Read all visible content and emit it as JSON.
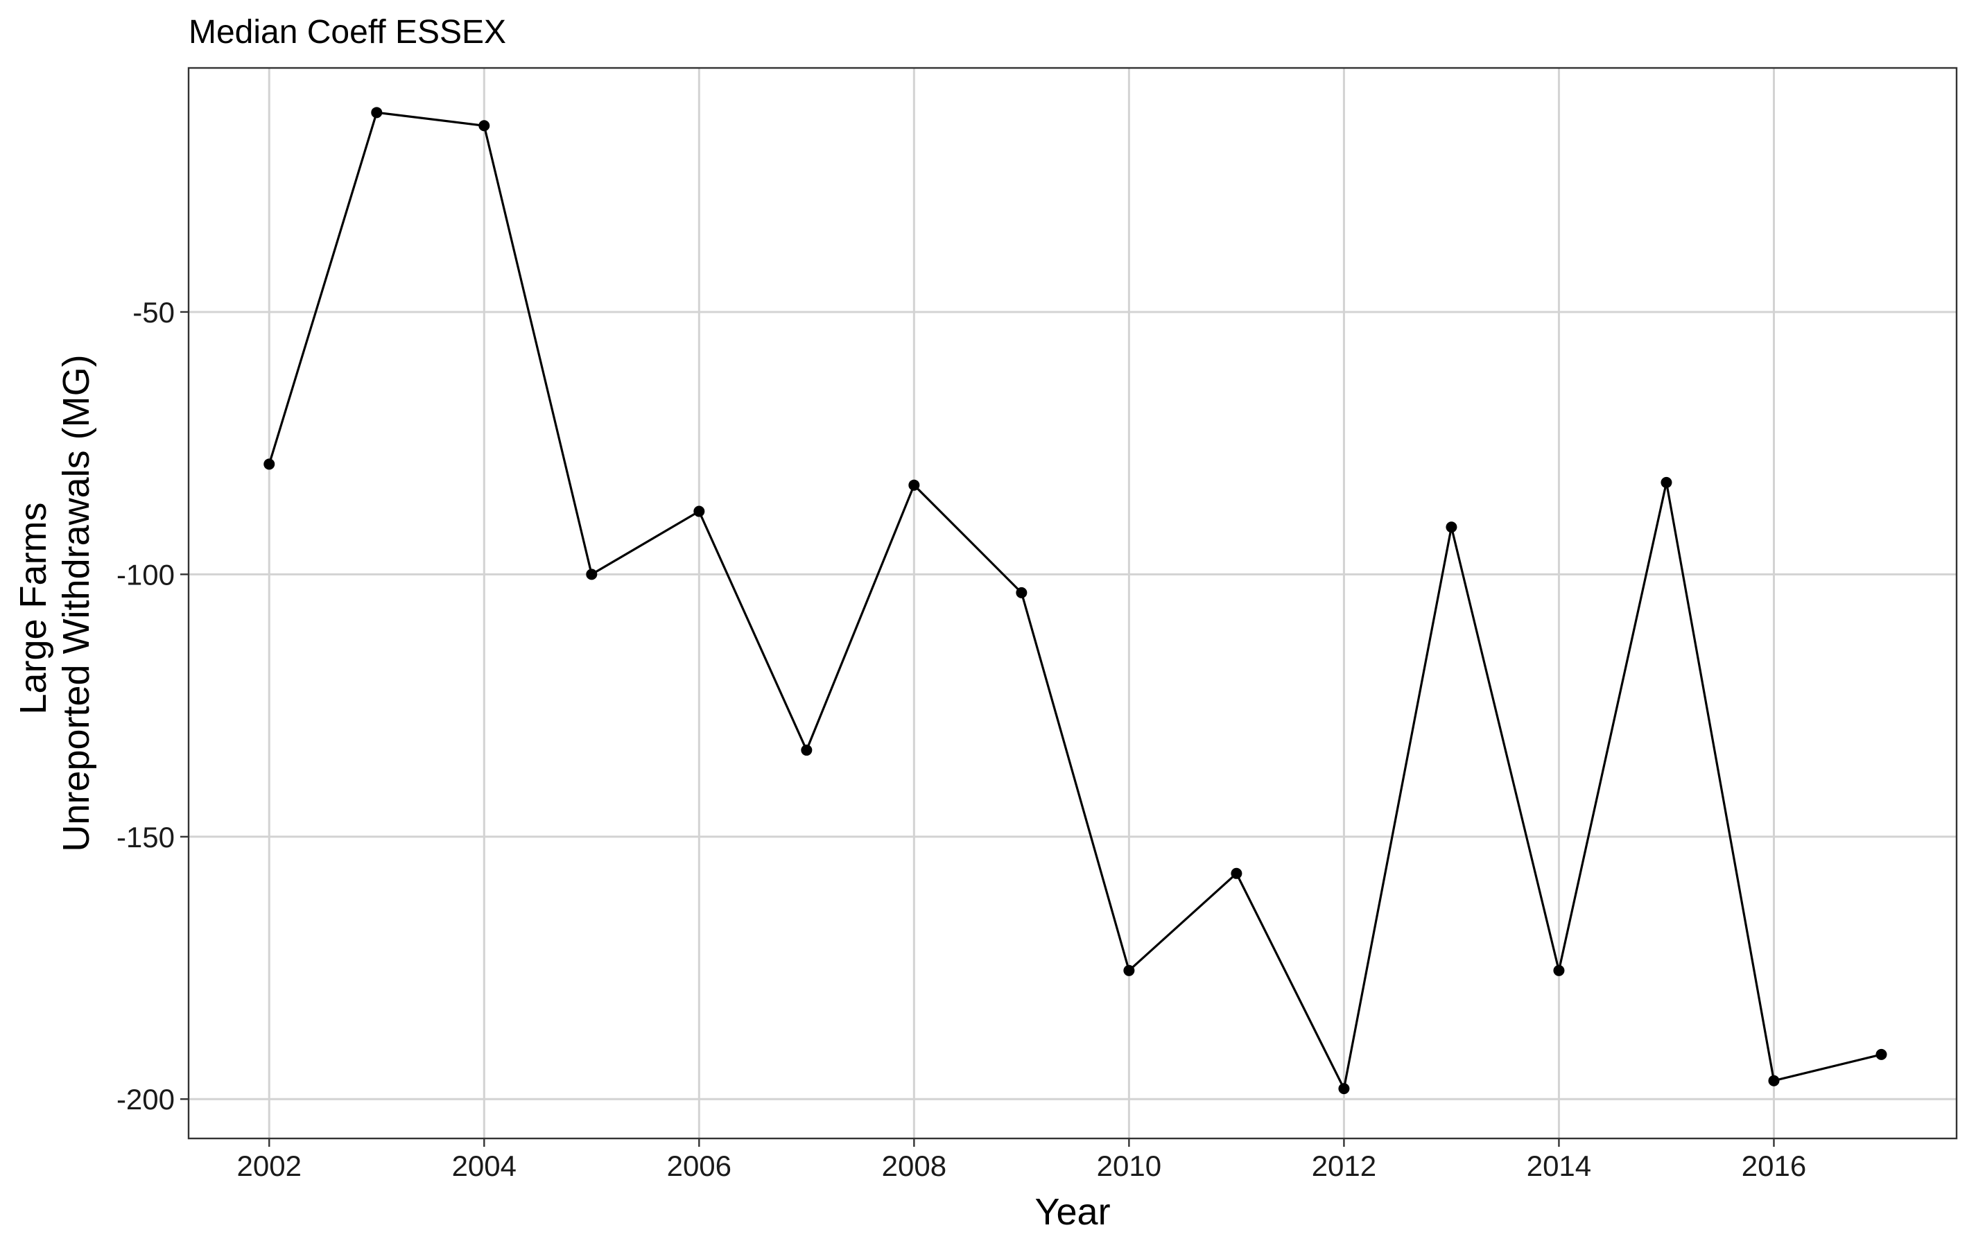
{
  "chart_data": {
    "type": "line",
    "title": "Median Coeff ESSEX",
    "xlabel": "Year",
    "ylabel_lines": [
      "Large Farms",
      "Unreported Withdrawals (MG)"
    ],
    "xlim": [
      2001.25,
      2017.7
    ],
    "ylim": [
      -207.5,
      -3.5
    ],
    "x_ticks": [
      2002,
      2004,
      2006,
      2008,
      2010,
      2012,
      2014,
      2016
    ],
    "y_ticks": [
      -200,
      -150,
      -100,
      -50
    ],
    "grid": true,
    "line_color": "#000000",
    "grid_color": "#d3d3d3",
    "x": [
      2002,
      2003,
      2004,
      2005,
      2006,
      2007,
      2008,
      2009,
      2010,
      2011,
      2012,
      2013,
      2014,
      2015,
      2016,
      2017
    ],
    "values": [
      -79,
      -12,
      -14.5,
      -100,
      -88,
      -133.5,
      -83,
      -103.5,
      -175.5,
      -157,
      -198,
      -91,
      -175.5,
      -82.5,
      -196.5,
      -191.5
    ]
  }
}
